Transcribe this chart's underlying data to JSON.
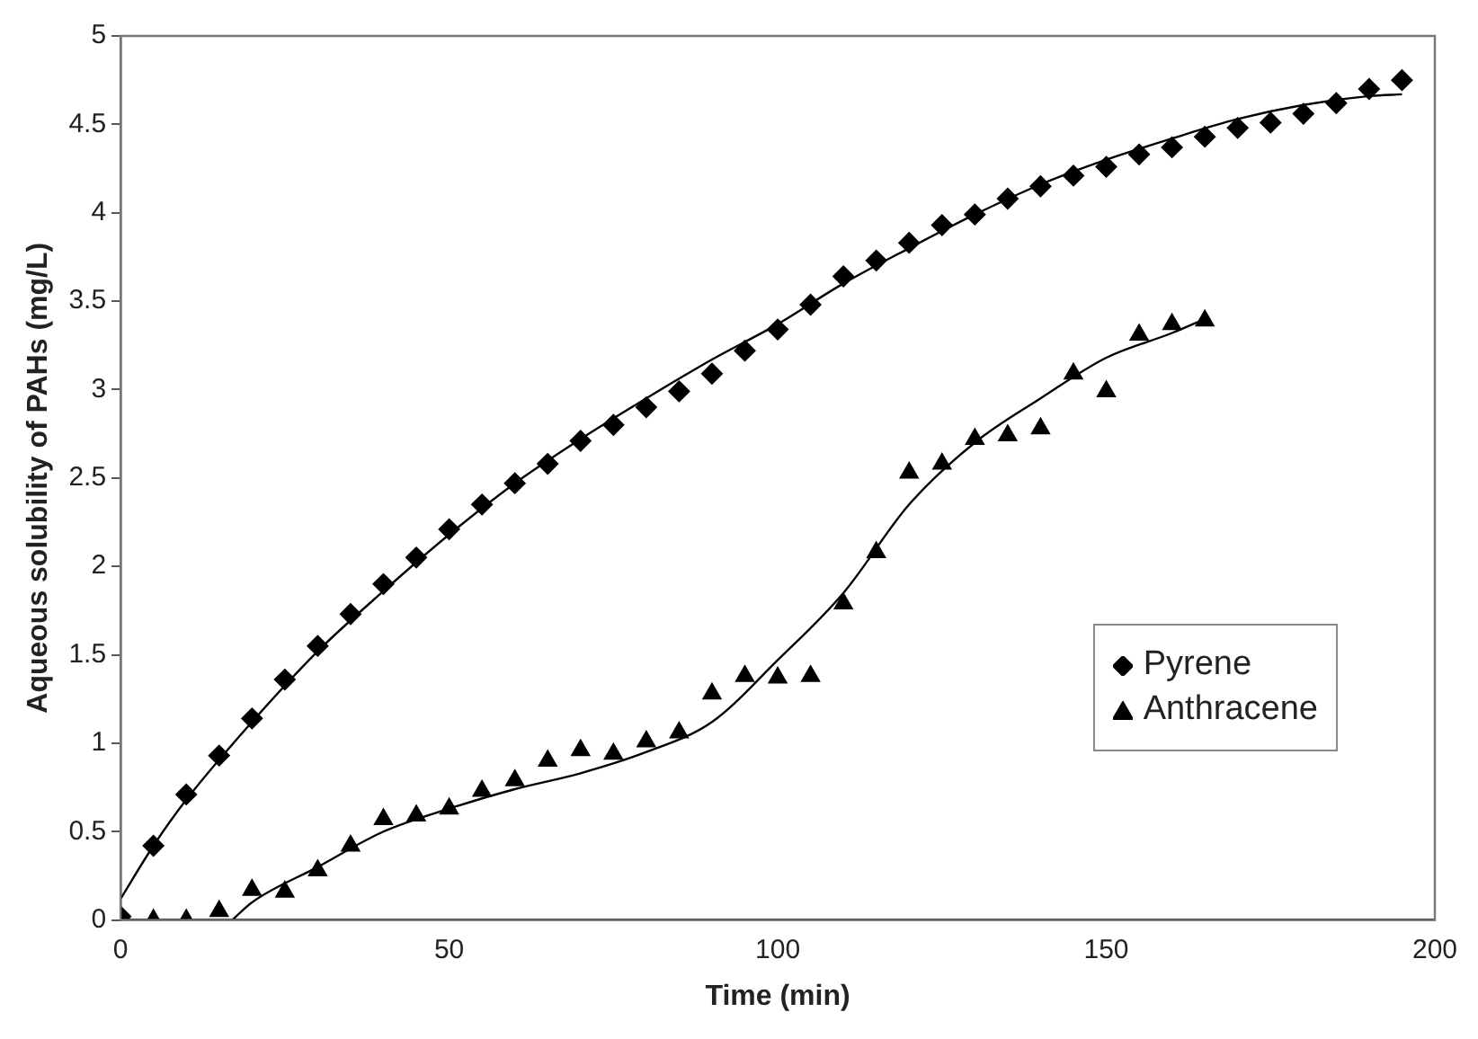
{
  "chart_data": {
    "type": "scatter",
    "xlabel": "Time (min)",
    "ylabel": "Aqueous solubility of PAHs (mg/L)",
    "xlim": [
      0,
      200
    ],
    "xticks": [
      0,
      50,
      100,
      150,
      200
    ],
    "ylim": [
      0,
      5
    ],
    "yticks": [
      0,
      0.5,
      1,
      1.5,
      2,
      2.5,
      3,
      3.5,
      4,
      4.5,
      5
    ],
    "grid": false,
    "legend": "bottom right",
    "series": [
      {
        "name": "Pyrene",
        "marker": "diamond",
        "color": "#000000",
        "x": [
          0,
          5,
          10,
          15,
          20,
          25,
          30,
          35,
          40,
          45,
          50,
          55,
          60,
          65,
          70,
          75,
          80,
          85,
          90,
          95,
          100,
          105,
          110,
          115,
          120,
          125,
          130,
          135,
          140,
          145,
          150,
          155,
          160,
          165,
          170,
          175,
          180,
          185,
          190,
          195
        ],
        "values": [
          0.02,
          0.42,
          0.71,
          0.93,
          1.14,
          1.36,
          1.55,
          1.73,
          1.9,
          2.05,
          2.21,
          2.35,
          2.47,
          2.58,
          2.71,
          2.8,
          2.9,
          2.99,
          3.09,
          3.22,
          3.34,
          3.48,
          3.64,
          3.73,
          3.83,
          3.93,
          3.99,
          4.08,
          4.15,
          4.21,
          4.26,
          4.33,
          4.37,
          4.43,
          4.48,
          4.51,
          4.56,
          4.62,
          4.7,
          4.75
        ]
      },
      {
        "name": "Anthracene",
        "marker": "triangle",
        "color": "#000000",
        "x": [
          5,
          10,
          15,
          20,
          25,
          30,
          35,
          40,
          45,
          50,
          55,
          60,
          65,
          70,
          75,
          80,
          85,
          90,
          95,
          100,
          105,
          110,
          115,
          120,
          125,
          130,
          135,
          140,
          145,
          150,
          155,
          160,
          165
        ],
        "values": [
          0,
          0,
          0.05,
          0.17,
          0.16,
          0.28,
          0.42,
          0.57,
          0.59,
          0.63,
          0.73,
          0.79,
          0.9,
          0.96,
          0.94,
          1.01,
          1.06,
          1.28,
          1.38,
          1.37,
          1.38,
          1.79,
          2.08,
          2.53,
          2.58,
          2.72,
          2.74,
          2.78,
          3.09,
          2.99,
          3.31,
          3.37,
          3.39
        ]
      },
      {
        "type": "line",
        "marker": "none",
        "line_style": "solid",
        "color": "#000000",
        "x": [
          0,
          5,
          10,
          20,
          30,
          40,
          50,
          60,
          70,
          80,
          90,
          100,
          110,
          120,
          130,
          140,
          150,
          160,
          170,
          180,
          190,
          195
        ],
        "values": [
          0.12,
          0.42,
          0.68,
          1.12,
          1.52,
          1.86,
          2.18,
          2.47,
          2.72,
          2.95,
          3.17,
          3.37,
          3.6,
          3.8,
          3.99,
          4.16,
          4.3,
          4.42,
          4.53,
          4.61,
          4.66,
          4.67
        ]
      },
      {
        "type": "line",
        "marker": "none",
        "line_style": "solid",
        "color": "#000000",
        "x": [
          17,
          20,
          30,
          40,
          50,
          60,
          70,
          80,
          90,
          100,
          110,
          120,
          130,
          140,
          150,
          160,
          165
        ],
        "values": [
          0,
          0.1,
          0.3,
          0.5,
          0.63,
          0.74,
          0.83,
          0.95,
          1.12,
          1.47,
          1.85,
          2.35,
          2.7,
          2.95,
          3.18,
          3.32,
          3.4
        ]
      }
    ]
  }
}
